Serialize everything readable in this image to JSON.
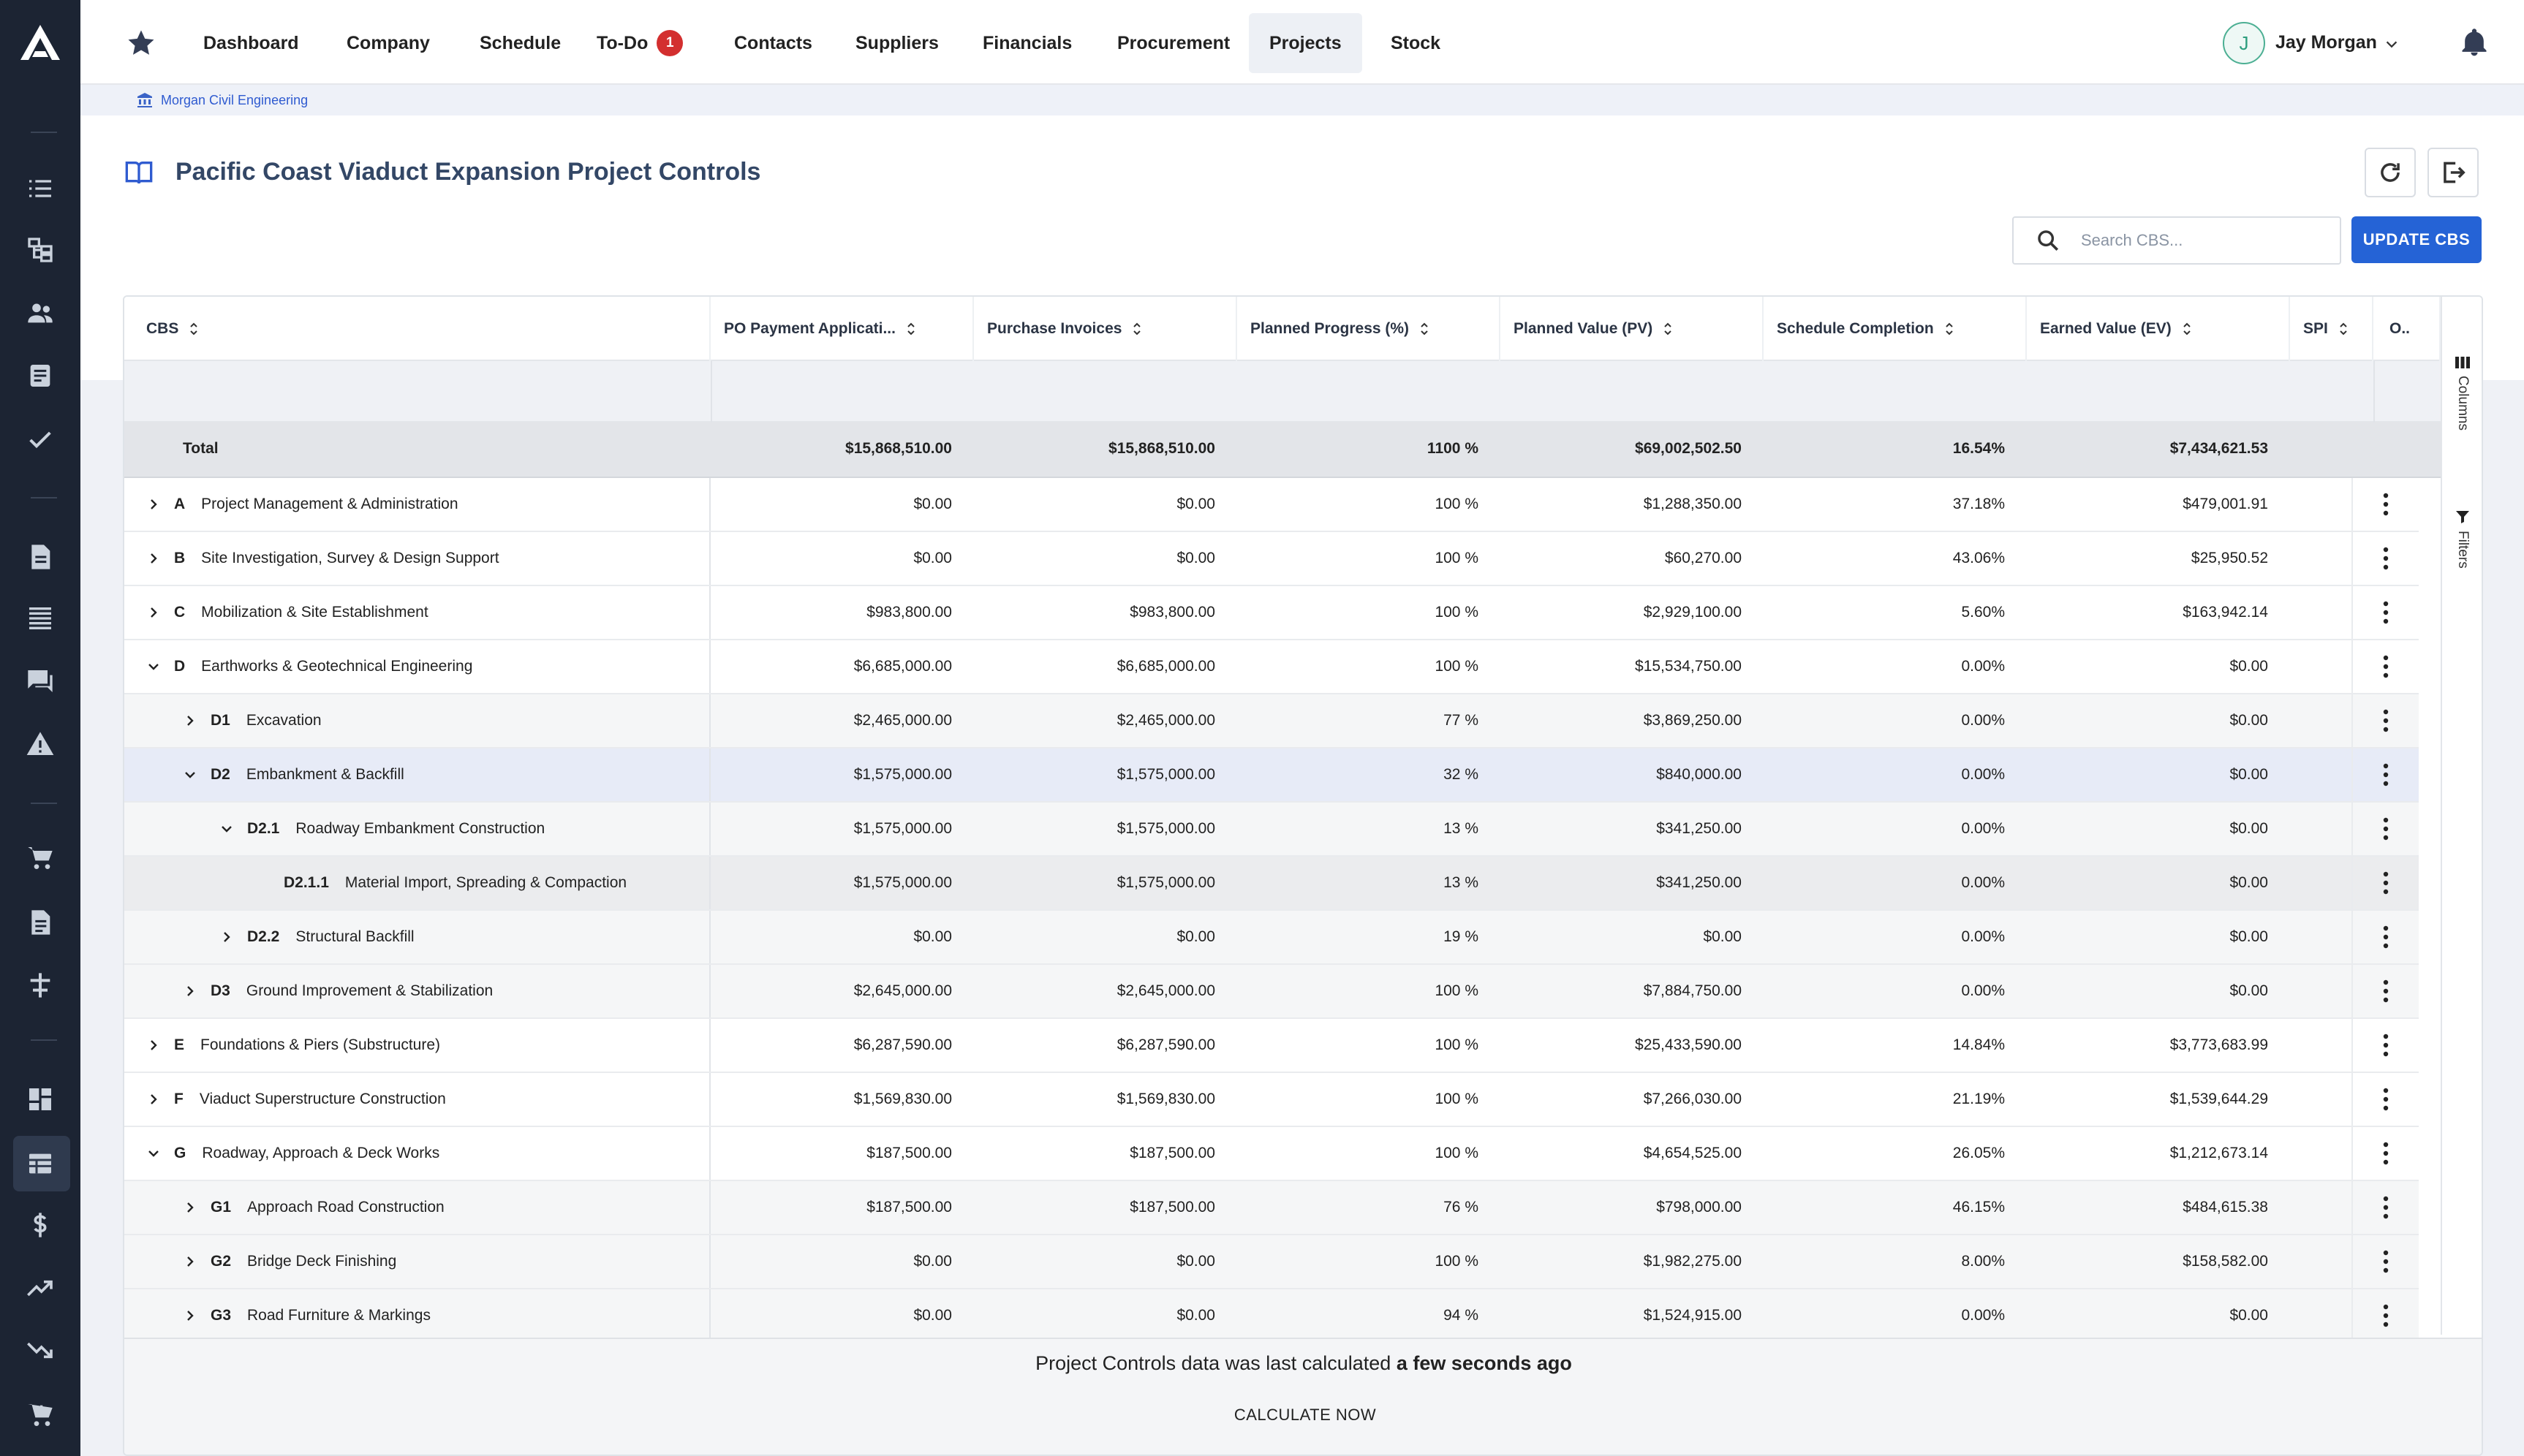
{
  "app": {
    "logo": "A",
    "title": "Pacific Coast Viaduct Expansion Project Controls"
  },
  "nav": {
    "items": [
      {
        "label": "Dashboard"
      },
      {
        "label": "Company"
      },
      {
        "label": "Schedule"
      },
      {
        "label": "To-Do",
        "badge": "1"
      },
      {
        "label": "Contacts"
      },
      {
        "label": "Suppliers"
      },
      {
        "label": "Financials"
      },
      {
        "label": "Procurement"
      },
      {
        "label": "Projects",
        "active": true
      },
      {
        "label": "Stock"
      }
    ],
    "user": {
      "initial": "J",
      "name": "Jay Morgan"
    }
  },
  "rail_icons": [
    "list-icon",
    "hierarchy-icon",
    "people-icon",
    "document-icon",
    "check-icon",
    "file-icon",
    "lines-icon",
    "chat-icon",
    "warning-icon",
    "cart-icon",
    "invoice-icon",
    "scale-icon",
    "dashboard-icon",
    "table-icon",
    "dollar-icon",
    "trending-up-icon",
    "trending-down-icon",
    "cart-plus-icon"
  ],
  "breadcrumb": {
    "company": "Morgan Civil Engineering"
  },
  "search": {
    "placeholder": "Search CBS..."
  },
  "buttons": {
    "update": "UPDATE CBS",
    "calculate": "CALCULATE NOW"
  },
  "columns": [
    {
      "label": "CBS"
    },
    {
      "label": "PO Payment Applicati..."
    },
    {
      "label": "Purchase Invoices"
    },
    {
      "label": "Planned Progress (%)"
    },
    {
      "label": "Planned Value (PV)"
    },
    {
      "label": "Schedule Completion"
    },
    {
      "label": "Earned Value (EV)"
    },
    {
      "label": "SPI"
    },
    {
      "label": "O.."
    }
  ],
  "side_tabs": {
    "columns": "Columns",
    "filters": "Filters"
  },
  "total": {
    "label": "Total",
    "po": "$15,868,510.00",
    "pi": "$15,868,510.00",
    "pp": "1100 %",
    "pv": "$69,002,502.50",
    "sc": "16.54%",
    "ev": "$7,434,621.53"
  },
  "rows": [
    {
      "level": 0,
      "expanded": false,
      "code": "A",
      "name": "Project Management & Administration",
      "po": "$0.00",
      "pi": "$0.00",
      "pp": "100 %",
      "pv": "$1,288,350.00",
      "sc": "37.18%",
      "ev": "$479,001.91"
    },
    {
      "level": 0,
      "expanded": false,
      "code": "B",
      "name": "Site Investigation, Survey & Design Support",
      "po": "$0.00",
      "pi": "$0.00",
      "pp": "100 %",
      "pv": "$60,270.00",
      "sc": "43.06%",
      "ev": "$25,950.52"
    },
    {
      "level": 0,
      "expanded": false,
      "code": "C",
      "name": "Mobilization & Site Establishment",
      "po": "$983,800.00",
      "pi": "$983,800.00",
      "pp": "100 %",
      "pv": "$2,929,100.00",
      "sc": "5.60%",
      "ev": "$163,942.14"
    },
    {
      "level": 0,
      "expanded": true,
      "code": "D",
      "name": "Earthworks & Geotechnical Engineering",
      "po": "$6,685,000.00",
      "pi": "$6,685,000.00",
      "pp": "100 %",
      "pv": "$15,534,750.00",
      "sc": "0.00%",
      "ev": "$0.00"
    },
    {
      "level": 1,
      "expanded": false,
      "code": "D1",
      "name": "Excavation",
      "po": "$2,465,000.00",
      "pi": "$2,465,000.00",
      "pp": "77 %",
      "pv": "$3,869,250.00",
      "sc": "0.00%",
      "ev": "$0.00"
    },
    {
      "level": 1,
      "expanded": true,
      "selected": true,
      "code": "D2",
      "name": "Embankment & Backfill",
      "po": "$1,575,000.00",
      "pi": "$1,575,000.00",
      "pp": "32 %",
      "pv": "$840,000.00",
      "sc": "0.00%",
      "ev": "$0.00"
    },
    {
      "level": 2,
      "expanded": true,
      "code": "D2.1",
      "name": "Roadway Embankment Construction",
      "po": "$1,575,000.00",
      "pi": "$1,575,000.00",
      "pp": "13 %",
      "pv": "$341,250.00",
      "sc": "0.00%",
      "ev": "$0.00"
    },
    {
      "level": 3,
      "leaf": true,
      "code": "D2.1.1",
      "name": "Material Import, Spreading & Compaction",
      "po": "$1,575,000.00",
      "pi": "$1,575,000.00",
      "pp": "13 %",
      "pv": "$341,250.00",
      "sc": "0.00%",
      "ev": "$0.00"
    },
    {
      "level": 2,
      "expanded": false,
      "code": "D2.2",
      "name": "Structural Backfill",
      "po": "$0.00",
      "pi": "$0.00",
      "pp": "19 %",
      "pv": "$0.00",
      "sc": "0.00%",
      "ev": "$0.00"
    },
    {
      "level": 1,
      "expanded": false,
      "code": "D3",
      "name": "Ground Improvement & Stabilization",
      "po": "$2,645,000.00",
      "pi": "$2,645,000.00",
      "pp": "100 %",
      "pv": "$7,884,750.00",
      "sc": "0.00%",
      "ev": "$0.00"
    },
    {
      "level": 0,
      "expanded": false,
      "code": "E",
      "name": "Foundations & Piers (Substructure)",
      "po": "$6,287,590.00",
      "pi": "$6,287,590.00",
      "pp": "100 %",
      "pv": "$25,433,590.00",
      "sc": "14.84%",
      "ev": "$3,773,683.99"
    },
    {
      "level": 0,
      "expanded": false,
      "code": "F",
      "name": "Viaduct Superstructure Construction",
      "po": "$1,569,830.00",
      "pi": "$1,569,830.00",
      "pp": "100 %",
      "pv": "$7,266,030.00",
      "sc": "21.19%",
      "ev": "$1,539,644.29"
    },
    {
      "level": 0,
      "expanded": true,
      "code": "G",
      "name": "Roadway, Approach & Deck Works",
      "po": "$187,500.00",
      "pi": "$187,500.00",
      "pp": "100 %",
      "pv": "$4,654,525.00",
      "sc": "26.05%",
      "ev": "$1,212,673.14"
    },
    {
      "level": 1,
      "expanded": false,
      "code": "G1",
      "name": "Approach Road Construction",
      "po": "$187,500.00",
      "pi": "$187,500.00",
      "pp": "76 %",
      "pv": "$798,000.00",
      "sc": "46.15%",
      "ev": "$484,615.38"
    },
    {
      "level": 1,
      "expanded": false,
      "code": "G2",
      "name": "Bridge Deck Finishing",
      "po": "$0.00",
      "pi": "$0.00",
      "pp": "100 %",
      "pv": "$1,982,275.00",
      "sc": "8.00%",
      "ev": "$158,582.00"
    },
    {
      "level": 1,
      "expanded": false,
      "code": "G3",
      "name": "Road Furniture & Markings",
      "po": "$0.00",
      "pi": "$0.00",
      "pp": "94 %",
      "pv": "$1,524,915.00",
      "sc": "0.00%",
      "ev": "$0.00"
    }
  ],
  "footer": {
    "message_prefix": "Project Controls data was last calculated ",
    "message_bold": "a few seconds ago"
  },
  "colors": {
    "rail": "#1c2433",
    "accent": "#2563d6",
    "badge": "#d32f2f",
    "selected_row": "#e7ebf7",
    "child_row": "#f5f6f7",
    "leaf_row": "#ebecee"
  }
}
